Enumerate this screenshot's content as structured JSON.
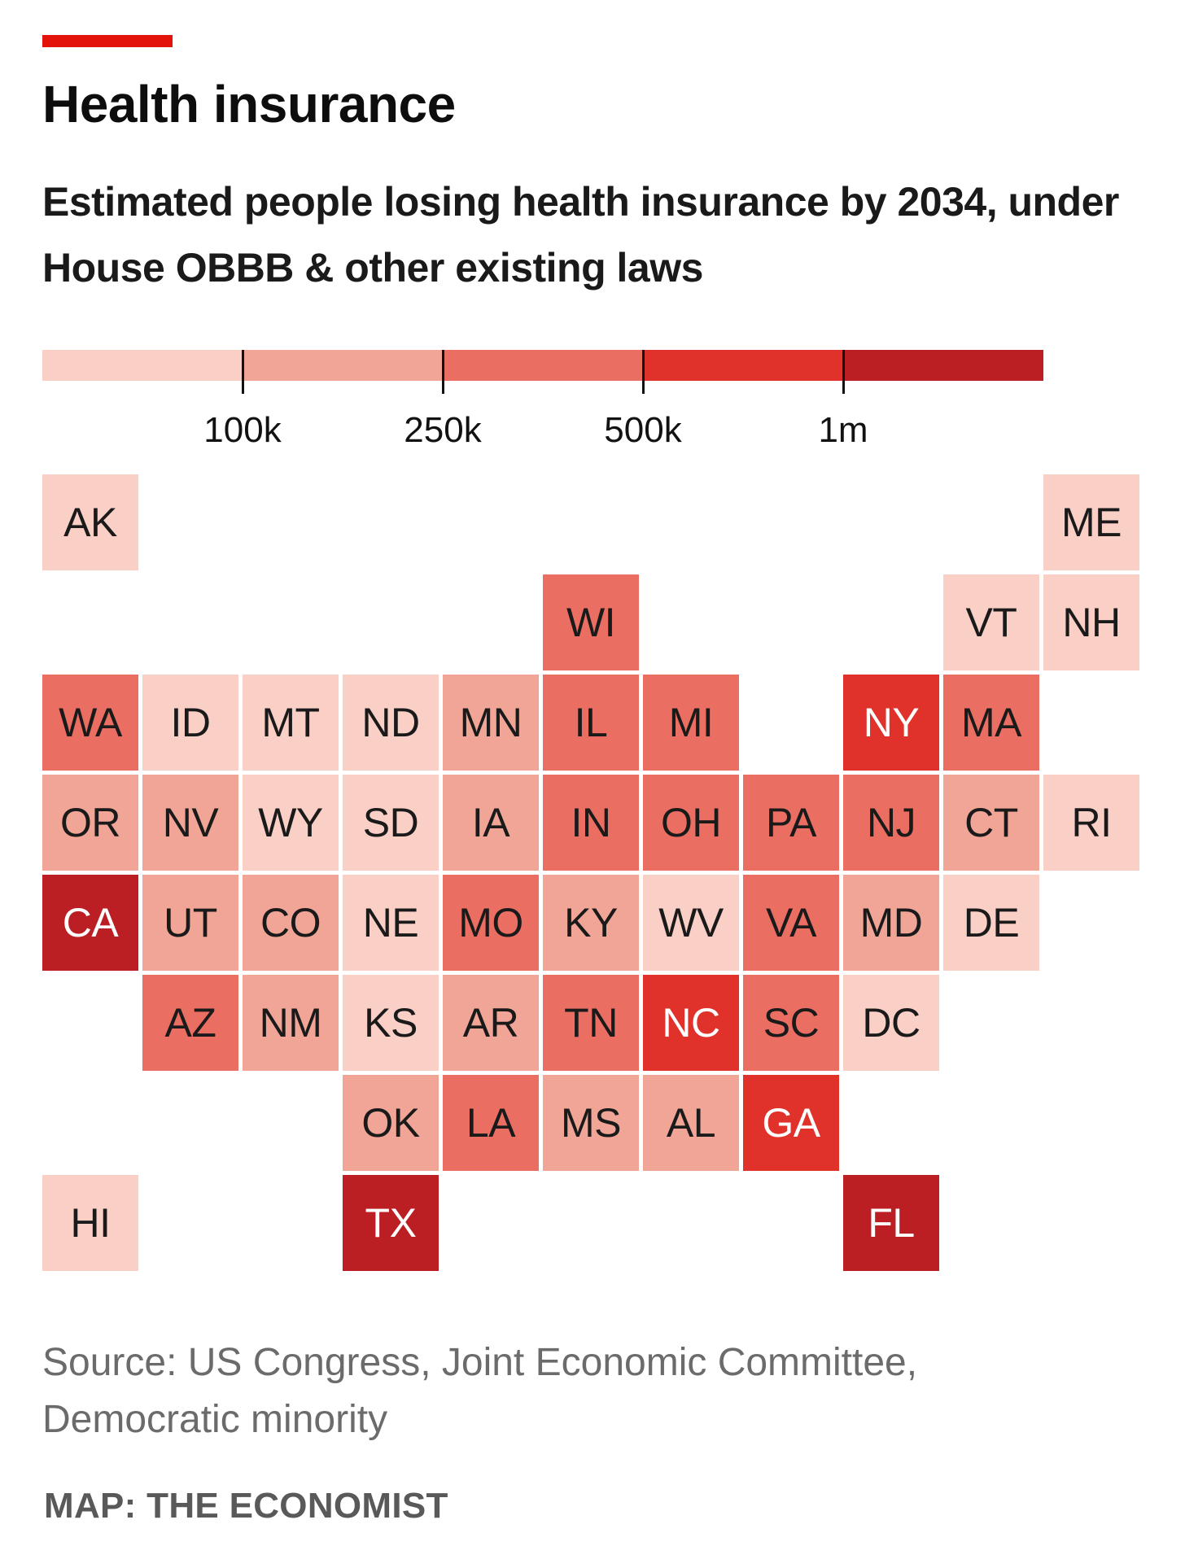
{
  "header": {
    "title": "Health insurance",
    "subtitle": "Estimated people losing health insurance by 2034, under House OBBB & other existing laws"
  },
  "legend": {
    "colors": [
      "#f9cfc6",
      "#f1a596",
      "#eb6e62",
      "#e0322b",
      "#bb1f23"
    ],
    "thresholds": [
      "100k",
      "250k",
      "500k",
      "1m"
    ]
  },
  "chart_data": {
    "type": "tile-map",
    "unit": "people",
    "bins": [
      {
        "range": "<100k",
        "color": "#f9cfc6"
      },
      {
        "range": "100k-250k",
        "color": "#f1a596"
      },
      {
        "range": "250k-500k",
        "color": "#eb6e62"
      },
      {
        "range": "500k-1m",
        "color": "#e0322b"
      },
      {
        "range": ">1m",
        "color": "#bb1f23"
      }
    ],
    "states": [
      {
        "abbr": "AK",
        "row": 0,
        "col": 0,
        "bin": 0
      },
      {
        "abbr": "ME",
        "row": 0,
        "col": 10,
        "bin": 0
      },
      {
        "abbr": "WI",
        "row": 1,
        "col": 5,
        "bin": 2
      },
      {
        "abbr": "VT",
        "row": 1,
        "col": 9,
        "bin": 0
      },
      {
        "abbr": "NH",
        "row": 1,
        "col": 10,
        "bin": 0
      },
      {
        "abbr": "WA",
        "row": 2,
        "col": 0,
        "bin": 2
      },
      {
        "abbr": "ID",
        "row": 2,
        "col": 1,
        "bin": 0
      },
      {
        "abbr": "MT",
        "row": 2,
        "col": 2,
        "bin": 0
      },
      {
        "abbr": "ND",
        "row": 2,
        "col": 3,
        "bin": 0
      },
      {
        "abbr": "MN",
        "row": 2,
        "col": 4,
        "bin": 1
      },
      {
        "abbr": "IL",
        "row": 2,
        "col": 5,
        "bin": 2
      },
      {
        "abbr": "MI",
        "row": 2,
        "col": 6,
        "bin": 2
      },
      {
        "abbr": "NY",
        "row": 2,
        "col": 8,
        "bin": 3
      },
      {
        "abbr": "MA",
        "row": 2,
        "col": 9,
        "bin": 2
      },
      {
        "abbr": "OR",
        "row": 3,
        "col": 0,
        "bin": 1
      },
      {
        "abbr": "NV",
        "row": 3,
        "col": 1,
        "bin": 1
      },
      {
        "abbr": "WY",
        "row": 3,
        "col": 2,
        "bin": 0
      },
      {
        "abbr": "SD",
        "row": 3,
        "col": 3,
        "bin": 0
      },
      {
        "abbr": "IA",
        "row": 3,
        "col": 4,
        "bin": 1
      },
      {
        "abbr": "IN",
        "row": 3,
        "col": 5,
        "bin": 2
      },
      {
        "abbr": "OH",
        "row": 3,
        "col": 6,
        "bin": 2
      },
      {
        "abbr": "PA",
        "row": 3,
        "col": 7,
        "bin": 2
      },
      {
        "abbr": "NJ",
        "row": 3,
        "col": 8,
        "bin": 2
      },
      {
        "abbr": "CT",
        "row": 3,
        "col": 9,
        "bin": 1
      },
      {
        "abbr": "RI",
        "row": 3,
        "col": 10,
        "bin": 0
      },
      {
        "abbr": "CA",
        "row": 4,
        "col": 0,
        "bin": 4
      },
      {
        "abbr": "UT",
        "row": 4,
        "col": 1,
        "bin": 1
      },
      {
        "abbr": "CO",
        "row": 4,
        "col": 2,
        "bin": 1
      },
      {
        "abbr": "NE",
        "row": 4,
        "col": 3,
        "bin": 0
      },
      {
        "abbr": "MO",
        "row": 4,
        "col": 4,
        "bin": 2
      },
      {
        "abbr": "KY",
        "row": 4,
        "col": 5,
        "bin": 1
      },
      {
        "abbr": "WV",
        "row": 4,
        "col": 6,
        "bin": 0
      },
      {
        "abbr": "VA",
        "row": 4,
        "col": 7,
        "bin": 2
      },
      {
        "abbr": "MD",
        "row": 4,
        "col": 8,
        "bin": 1
      },
      {
        "abbr": "DE",
        "row": 4,
        "col": 9,
        "bin": 0
      },
      {
        "abbr": "AZ",
        "row": 5,
        "col": 1,
        "bin": 2
      },
      {
        "abbr": "NM",
        "row": 5,
        "col": 2,
        "bin": 1
      },
      {
        "abbr": "KS",
        "row": 5,
        "col": 3,
        "bin": 0
      },
      {
        "abbr": "AR",
        "row": 5,
        "col": 4,
        "bin": 1
      },
      {
        "abbr": "TN",
        "row": 5,
        "col": 5,
        "bin": 2
      },
      {
        "abbr": "NC",
        "row": 5,
        "col": 6,
        "bin": 3
      },
      {
        "abbr": "SC",
        "row": 5,
        "col": 7,
        "bin": 2
      },
      {
        "abbr": "DC",
        "row": 5,
        "col": 8,
        "bin": 0
      },
      {
        "abbr": "OK",
        "row": 6,
        "col": 3,
        "bin": 1
      },
      {
        "abbr": "LA",
        "row": 6,
        "col": 4,
        "bin": 2
      },
      {
        "abbr": "MS",
        "row": 6,
        "col": 5,
        "bin": 1
      },
      {
        "abbr": "AL",
        "row": 6,
        "col": 6,
        "bin": 1
      },
      {
        "abbr": "GA",
        "row": 6,
        "col": 7,
        "bin": 3
      },
      {
        "abbr": "HI",
        "row": 7,
        "col": 0,
        "bin": 0
      },
      {
        "abbr": "TX",
        "row": 7,
        "col": 3,
        "bin": 4
      },
      {
        "abbr": "FL",
        "row": 7,
        "col": 8,
        "bin": 4
      }
    ]
  },
  "footer": {
    "source": "Source: US Congress, Joint Economic Committee, Democratic minority",
    "credit": "MAP: THE ECONOMIST"
  }
}
